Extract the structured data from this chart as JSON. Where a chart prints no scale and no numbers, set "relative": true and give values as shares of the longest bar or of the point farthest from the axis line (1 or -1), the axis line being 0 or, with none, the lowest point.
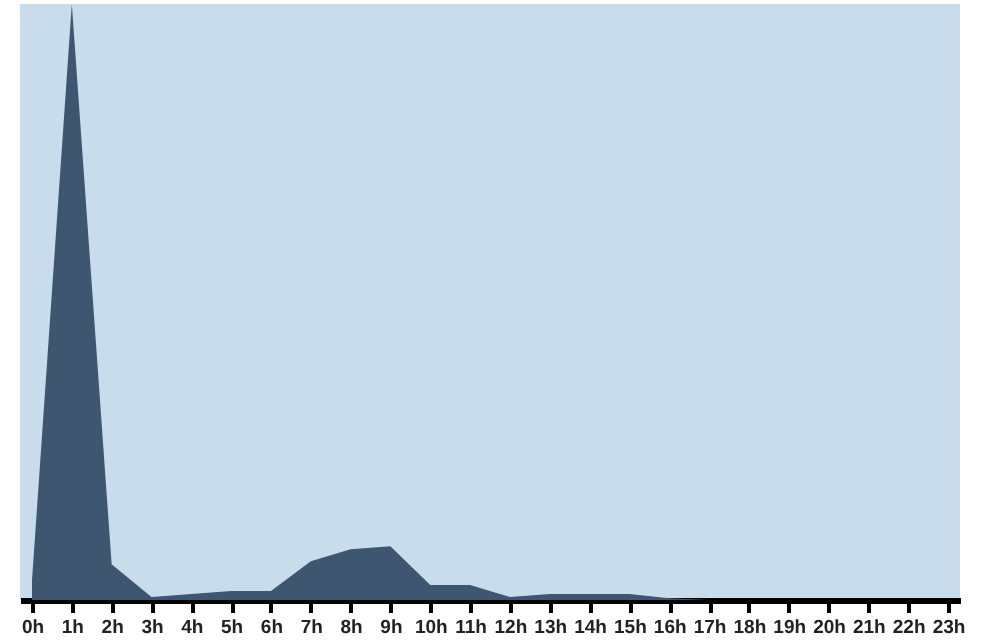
{
  "chart_data": {
    "type": "area",
    "relative": true,
    "categories": [
      "0h",
      "1h",
      "2h",
      "3h",
      "4h",
      "5h",
      "6h",
      "7h",
      "8h",
      "9h",
      "10h",
      "11h",
      "12h",
      "13h",
      "14h",
      "15h",
      "16h",
      "17h",
      "18h",
      "19h",
      "20h",
      "21h",
      "22h",
      "23h"
    ],
    "series": [
      {
        "color": "#3f5670",
        "values": [
          0.033,
          1,
          0.06,
          0.005,
          0.01,
          0.015,
          0.015,
          0.065,
          0.085,
          0.09,
          0.025,
          0.025,
          0.005,
          0.01,
          0.01,
          0.01,
          0.003,
          0,
          0,
          0,
          0,
          0,
          0,
          0
        ]
      }
    ]
  }
}
